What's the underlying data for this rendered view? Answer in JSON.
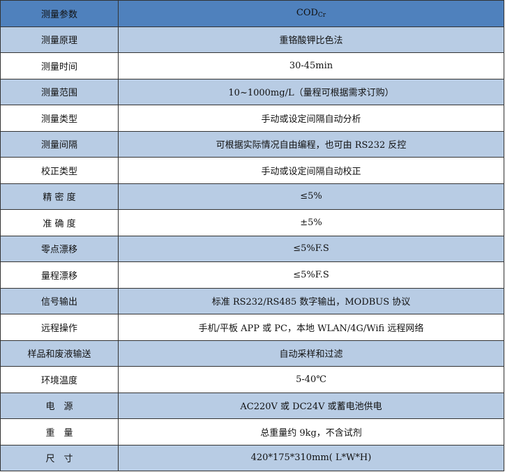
{
  "colors": {
    "header": "#4f81bd",
    "alt": "#b8cce4",
    "plain": "#ffffff"
  },
  "header": {
    "key": "测量参数",
    "value": "COD",
    "value_sub": "Cr"
  },
  "rows": [
    {
      "key": "测量原理",
      "value": "重铬酸钾比色法",
      "style": "blue"
    },
    {
      "key": "测量时间",
      "value": "30-45min",
      "style": "white"
    },
    {
      "key": "测量范围",
      "value": "10~1000mg/L（量程可根据需求订购）",
      "style": "blue"
    },
    {
      "key": "测量类型",
      "value": "手动或设定间隔自动分析",
      "style": "white"
    },
    {
      "key": "测量间隔",
      "value": "可根据实际情况自由编程，也可由 RS232 反控",
      "style": "blue"
    },
    {
      "key": "校正类型",
      "value": "手动或设定间隔自动校正",
      "style": "white"
    },
    {
      "key": "精 密 度",
      "value": "≤5%",
      "style": "blue"
    },
    {
      "key": "准 确 度",
      "value": "±5%",
      "style": "white"
    },
    {
      "key": "零点漂移",
      "value": "≤5%F.S",
      "style": "blue"
    },
    {
      "key": "量程漂移",
      "value": "≤5%F.S",
      "style": "white"
    },
    {
      "key": "信号输出",
      "value": "标准 RS232/RS485 数字输出，MODBUS 协议",
      "style": "blue"
    },
    {
      "key": "远程操作",
      "value": "手机/平板 APP 或 PC，本地 WLAN/4G/Wifi 远程网络",
      "style": "white"
    },
    {
      "key": "样品和废液输送",
      "value": "自动采样和过滤",
      "style": "blue"
    },
    {
      "key": "环境温度",
      "value": "5-40℃",
      "style": "white"
    },
    {
      "key": "电　源",
      "value": "AC220V 或 DC24V 或蓄电池供电",
      "style": "blue"
    },
    {
      "key": "重　量",
      "value": "总重量约 9kg，不含试剂",
      "style": "white"
    },
    {
      "key": "尺　寸",
      "value": "420*175*310mm( L*W*H)",
      "style": "blue"
    }
  ]
}
